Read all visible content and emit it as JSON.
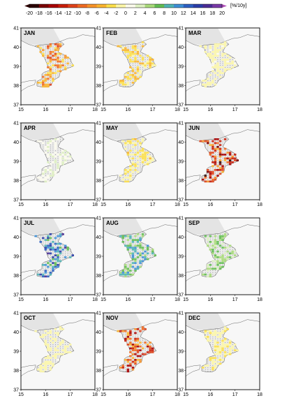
{
  "colorbar": {
    "unit": "[%/10y]",
    "ticks": [
      -20,
      -18,
      -16,
      -14,
      -12,
      -10,
      -8,
      -6,
      -4,
      -2,
      0,
      2,
      4,
      6,
      8,
      10,
      12,
      14,
      16,
      18,
      20
    ],
    "colors": [
      "#2b0000",
      "#7a0000",
      "#a80000",
      "#c81e0a",
      "#e0421a",
      "#ef6a22",
      "#f79228",
      "#fbb42e",
      "#fde04a",
      "#fdf7a8",
      "#fdfcee",
      "#dff1c2",
      "#a9da7a",
      "#62bc52",
      "#4fb4b4",
      "#3d8fd6",
      "#2c5fc2",
      "#2a3da8",
      "#4b2c95",
      "#7a3aa8",
      "#b052b8"
    ]
  },
  "map": {
    "x_ticks": [
      "15",
      "16",
      "17",
      "18"
    ],
    "y_ticks": [
      "41",
      "40",
      "39",
      "38",
      "37"
    ],
    "lon_range": [
      15,
      18
    ],
    "lat_range": [
      37,
      41
    ]
  },
  "panels": [
    {
      "label": "JAN",
      "trend": -9
    },
    {
      "label": "FEB",
      "trend": -5
    },
    {
      "label": "MAR",
      "trend": -2
    },
    {
      "label": "APR",
      "trend": 1
    },
    {
      "label": "MAY",
      "trend": -4
    },
    {
      "label": "JUN",
      "trend": -15
    },
    {
      "label": "JUL",
      "trend": 12
    },
    {
      "label": "AUG",
      "trend": 8
    },
    {
      "label": "SEP",
      "trend": 5
    },
    {
      "label": "OCT",
      "trend": -2
    },
    {
      "label": "NOV",
      "trend": -13
    },
    {
      "label": "DEC",
      "trend": -3
    }
  ]
}
